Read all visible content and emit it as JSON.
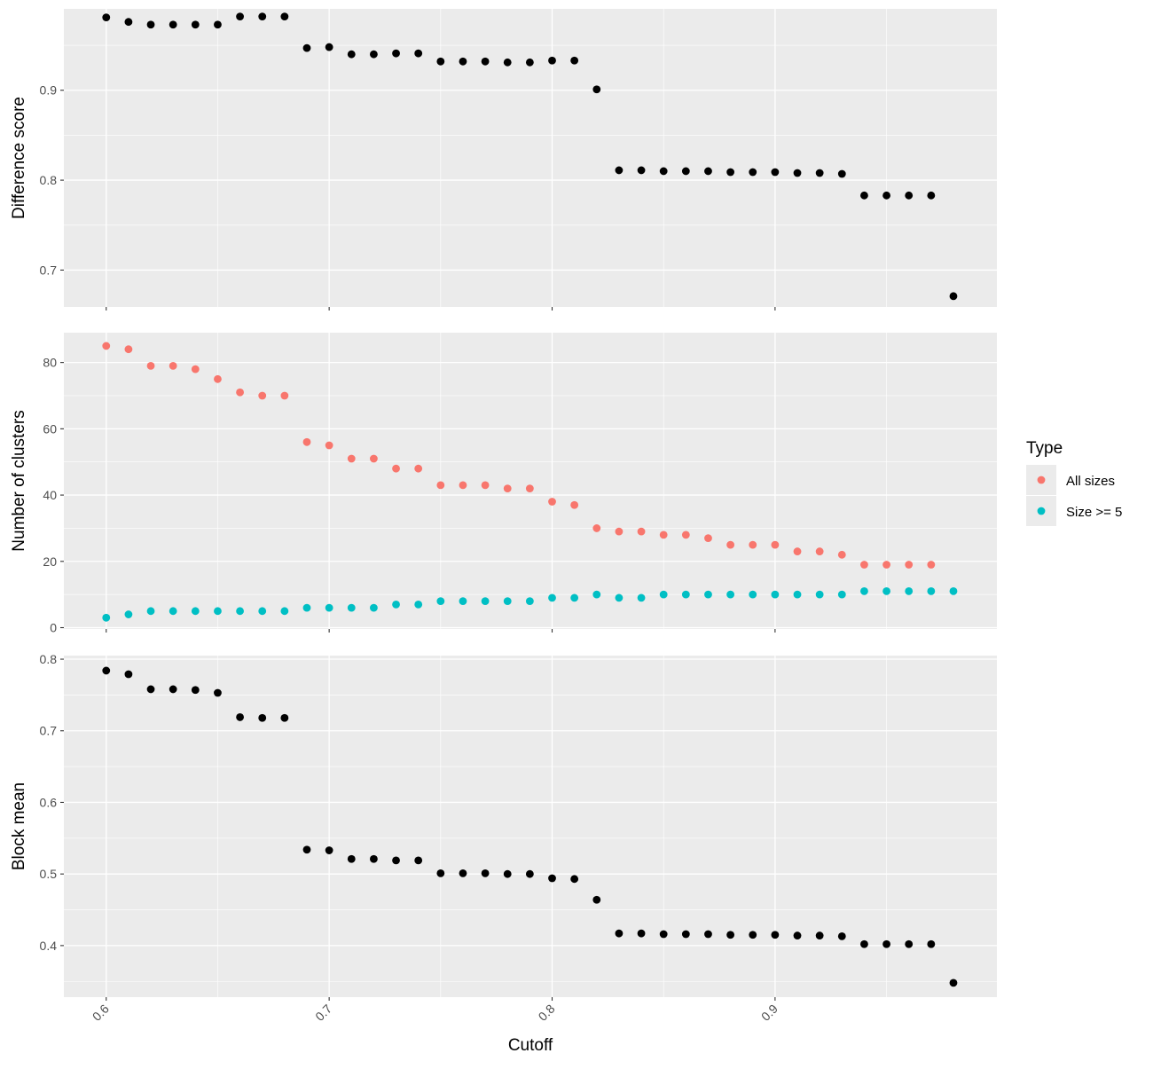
{
  "chart_data": [
    {
      "type": "scatter",
      "ylabel": "Difference score",
      "xlabel": "",
      "xlim": [
        0.581,
        0.9995
      ],
      "ylim": [
        0.659,
        0.9905
      ],
      "y_ticks": [
        0.7,
        0.8,
        0.9
      ],
      "y_tick_labels": [
        "0.7",
        "0.8",
        "0.9"
      ],
      "x_ticks": [
        0.6,
        0.7,
        0.8,
        0.9
      ],
      "grid": true,
      "series": [
        {
          "color": "#000000",
          "x": [
            0.6,
            0.61,
            0.62,
            0.63,
            0.64,
            0.65,
            0.66,
            0.67,
            0.68,
            0.69,
            0.7,
            0.71,
            0.72,
            0.73,
            0.74,
            0.75,
            0.76,
            0.77,
            0.78,
            0.79,
            0.8,
            0.81,
            0.82,
            0.83,
            0.84,
            0.85,
            0.86,
            0.87,
            0.88,
            0.89,
            0.9,
            0.91,
            0.92,
            0.93,
            0.94,
            0.95,
            0.96,
            0.97,
            0.98
          ],
          "y": [
            0.981,
            0.976,
            0.973,
            0.973,
            0.973,
            0.973,
            0.982,
            0.982,
            0.982,
            0.947,
            0.948,
            0.94,
            0.94,
            0.941,
            0.941,
            0.932,
            0.932,
            0.932,
            0.931,
            0.931,
            0.933,
            0.933,
            0.901,
            0.811,
            0.811,
            0.81,
            0.81,
            0.81,
            0.809,
            0.809,
            0.809,
            0.808,
            0.808,
            0.807,
            0.783,
            0.783,
            0.783,
            0.783,
            0.671
          ]
        }
      ]
    },
    {
      "type": "scatter",
      "ylabel": "Number of clusters",
      "xlabel": "",
      "xlim": [
        0.581,
        0.9995
      ],
      "ylim": [
        -0.4,
        89.0
      ],
      "y_ticks": [
        0,
        20,
        40,
        60,
        80
      ],
      "y_tick_labels": [
        "0",
        "20",
        "40",
        "60",
        "80"
      ],
      "x_ticks": [
        0.6,
        0.7,
        0.8,
        0.9
      ],
      "grid": true,
      "legend": {
        "title": "Type",
        "placement": "right",
        "entries": [
          "All sizes",
          "Size >= 5"
        ]
      },
      "series": [
        {
          "name": "All sizes",
          "color": "#F8766D",
          "x": [
            0.6,
            0.61,
            0.62,
            0.63,
            0.64,
            0.65,
            0.66,
            0.67,
            0.68,
            0.69,
            0.7,
            0.71,
            0.72,
            0.73,
            0.74,
            0.75,
            0.76,
            0.77,
            0.78,
            0.79,
            0.8,
            0.81,
            0.82,
            0.83,
            0.84,
            0.85,
            0.86,
            0.87,
            0.88,
            0.89,
            0.9,
            0.91,
            0.92,
            0.93,
            0.94,
            0.95,
            0.96,
            0.97
          ],
          "y": [
            85,
            84,
            79,
            79,
            78,
            75,
            71,
            70,
            70,
            56,
            55,
            51,
            51,
            48,
            48,
            43,
            43,
            43,
            42,
            42,
            38,
            37,
            30,
            29,
            29,
            28,
            28,
            27,
            25,
            25,
            25,
            23,
            23,
            22,
            19,
            19,
            19,
            19
          ]
        },
        {
          "name": "Size >= 5",
          "color": "#00BFC4",
          "x": [
            0.6,
            0.61,
            0.62,
            0.63,
            0.64,
            0.65,
            0.66,
            0.67,
            0.68,
            0.69,
            0.7,
            0.71,
            0.72,
            0.73,
            0.74,
            0.75,
            0.76,
            0.77,
            0.78,
            0.79,
            0.8,
            0.81,
            0.82,
            0.83,
            0.84,
            0.85,
            0.86,
            0.87,
            0.88,
            0.89,
            0.9,
            0.91,
            0.92,
            0.93,
            0.94,
            0.95,
            0.96,
            0.97,
            0.98
          ],
          "y": [
            3,
            4,
            5,
            5,
            5,
            5,
            5,
            5,
            5,
            6,
            6,
            6,
            6,
            7,
            7,
            8,
            8,
            8,
            8,
            8,
            9,
            9,
            10,
            9,
            9,
            10,
            10,
            10,
            10,
            10,
            10,
            10,
            10,
            10,
            11,
            11,
            11,
            11,
            11
          ]
        }
      ]
    },
    {
      "type": "scatter",
      "ylabel": "Block mean",
      "xlabel": "Cutoff",
      "xlim": [
        0.581,
        0.9995
      ],
      "ylim": [
        0.328,
        0.805
      ],
      "y_ticks": [
        0.4,
        0.5,
        0.6,
        0.7,
        0.8
      ],
      "y_tick_labels": [
        "0.4",
        "0.5",
        "0.6",
        "0.7",
        "0.8"
      ],
      "x_ticks": [
        0.6,
        0.7,
        0.8,
        0.9
      ],
      "x_tick_labels": [
        "0.6",
        "0.7",
        "0.8",
        "0.9"
      ],
      "grid": true,
      "series": [
        {
          "color": "#000000",
          "x": [
            0.6,
            0.61,
            0.62,
            0.63,
            0.64,
            0.65,
            0.66,
            0.67,
            0.68,
            0.69,
            0.7,
            0.71,
            0.72,
            0.73,
            0.74,
            0.75,
            0.76,
            0.77,
            0.78,
            0.79,
            0.8,
            0.81,
            0.82,
            0.83,
            0.84,
            0.85,
            0.86,
            0.87,
            0.88,
            0.89,
            0.9,
            0.91,
            0.92,
            0.93,
            0.94,
            0.95,
            0.96,
            0.97,
            0.98
          ],
          "y": [
            0.784,
            0.779,
            0.758,
            0.758,
            0.757,
            0.753,
            0.719,
            0.718,
            0.718,
            0.534,
            0.533,
            0.521,
            0.521,
            0.519,
            0.519,
            0.501,
            0.501,
            0.501,
            0.5,
            0.5,
            0.494,
            0.493,
            0.464,
            0.417,
            0.417,
            0.416,
            0.416,
            0.416,
            0.415,
            0.415,
            0.415,
            0.414,
            0.414,
            0.413,
            0.402,
            0.402,
            0.402,
            0.402,
            0.348
          ]
        }
      ]
    }
  ]
}
